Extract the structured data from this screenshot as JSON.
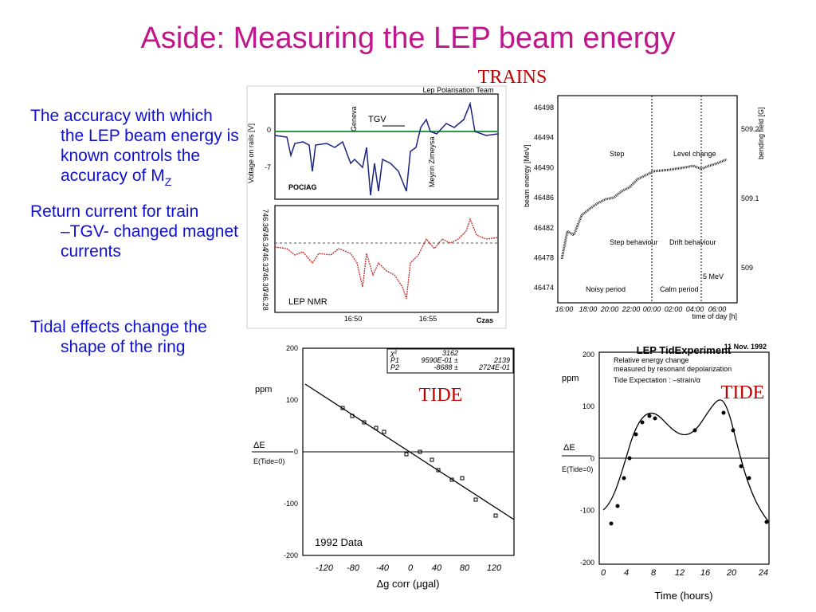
{
  "title": "Aside: Measuring the LEP beam energy",
  "bullets": [
    {
      "text": "The accuracy with which the LEP beam energy is known controls the accuracy of M",
      "subscript": "Z"
    },
    {
      "text": "Return current for train –TGV- changed magnet currents"
    },
    {
      "text": "Tidal effects change the shape of the ring"
    }
  ],
  "overlays": {
    "trains": "TRAINS",
    "tide_left": "TIDE",
    "tide_right": "TIDE"
  },
  "fig_trains": {
    "header": "Lep Polarisation Team",
    "ylabel": "Voltage on rails [V]",
    "yticks_top": [
      "0",
      "-7"
    ],
    "tgv": "TGV",
    "geneva": "Geneva",
    "meyrin": "Meyrin Zimeysa",
    "pociag": "POCIAG",
    "nmr": "LEP NMR",
    "yticks_bottom": [
      "746.36",
      "746.34",
      "746.32",
      "746.30",
      "746.28"
    ],
    "xticks": [
      "16:50",
      "16:55"
    ],
    "czas": "Czas"
  },
  "fig_tid": {
    "ylabel": "beam energy [MeV]",
    "y2label": "bending field [G]",
    "yticks": [
      "46498",
      "46494",
      "46490",
      "46486",
      "46482",
      "46478",
      "46474"
    ],
    "y2ticks": [
      "509.2",
      "509.1",
      "509"
    ],
    "xticks": [
      "16:00",
      "18:00",
      "20:00",
      "22:00",
      "00:00",
      "02:00",
      "04:00",
      "06:00"
    ],
    "xlabel": "time of day [h]",
    "step": "Step",
    "level": "Level change",
    "step_beh": "Step behaviour",
    "drift": "Drift behaviour",
    "noisy": "Noisy period",
    "calm": "Calm period",
    "scale": "5 MeV",
    "caption": "LEP TidExperiment"
  },
  "fig_tide1": {
    "yticks": [
      "200",
      "100",
      "0",
      "-100",
      "-200"
    ],
    "xticks": [
      "-120",
      "-80",
      "-40",
      "0",
      "40",
      "80",
      "120"
    ],
    "ppm": "ppm",
    "num": "ΔE",
    "den": "E(Tide=0)",
    "xlabel": "Δg corr (μgal)",
    "data": "1992 Data",
    "stats": [
      [
        "χ²",
        "3162",
        ""
      ],
      [
        "P1",
        "9590E-01 ±",
        "2139"
      ],
      [
        "P2",
        "-8688 ±",
        "2724E-01"
      ]
    ]
  },
  "fig_tide2": {
    "date": "11 Nov. 1992",
    "yticks": [
      "200",
      "100",
      "0",
      "-100",
      "-200"
    ],
    "xticks": [
      "0",
      "4",
      "8",
      "12",
      "16",
      "20",
      "24"
    ],
    "ppm": "ppm",
    "num": "ΔE",
    "den": "E(Tide=0)",
    "legend1": "Relative energy change",
    "legend1b": "measured by resonant depolarization",
    "legend2": "Tide Expectation : –strain/α",
    "xlabel": "Time (hours)"
  }
}
